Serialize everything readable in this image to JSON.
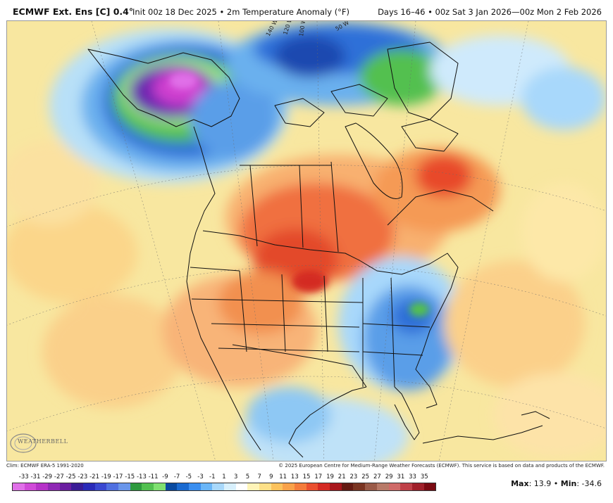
{
  "header": {
    "title": "ECMWF Ext. Ens [C] 0.4°",
    "subtitle": "Init 00z 18 Dec 2025 • 2m Temperature Anomaly (°F)",
    "valid": "Days 16–46 • 00z Sat 3 Jan 2026—00z Mon 2 Feb 2026"
  },
  "map": {
    "lon_labels": [
      "140 W",
      "120 W",
      "100 W",
      "50 W"
    ],
    "brand": "WEATHERBELL"
  },
  "footer": {
    "clim": "Clim: ECMWF ERA-5 1991-2020",
    "credit": "© 2025 European Centre for Medium-Range Weather Forecasts (ECMWF). This service is based on data and products of the ECMWF."
  },
  "colorbar": {
    "labels": [
      "-33",
      "-31",
      "-29",
      "-27",
      "-25",
      "-23",
      "-21",
      "-19",
      "-17",
      "-15",
      "-13",
      "-11",
      "-9",
      "-7",
      "-5",
      "-3",
      "-1",
      "1",
      "3",
      "5",
      "7",
      "9",
      "11",
      "13",
      "15",
      "17",
      "19",
      "21",
      "23",
      "25",
      "27",
      "29",
      "31",
      "33",
      "35"
    ],
    "colors": [
      "#e070e8",
      "#d04ad8",
      "#b632c8",
      "#8e28b4",
      "#6a1ea0",
      "#3a1c96",
      "#2a2ab8",
      "#3a48d0",
      "#5070e0",
      "#6a96ea",
      "#2e9a3e",
      "#52c050",
      "#7fe070",
      "#0a4aa0",
      "#1a6ad0",
      "#3a8ef0",
      "#6ab6f8",
      "#a8d8fb",
      "#d8f0fd",
      "#ffffff",
      "#fff4b8",
      "#fde088",
      "#fcc25c",
      "#f9a24a",
      "#f47c3c",
      "#ea5030",
      "#d42a24",
      "#a8161c",
      "#641a12",
      "#7a3422",
      "#9a5a48",
      "#b87a68",
      "#cf6a68",
      "#bf4048",
      "#a0202a",
      "#7a0a12"
    ],
    "stats_max_label": "Max",
    "stats_max": "13.9",
    "stats_min_label": "Min",
    "stats_min": "-34.6"
  }
}
